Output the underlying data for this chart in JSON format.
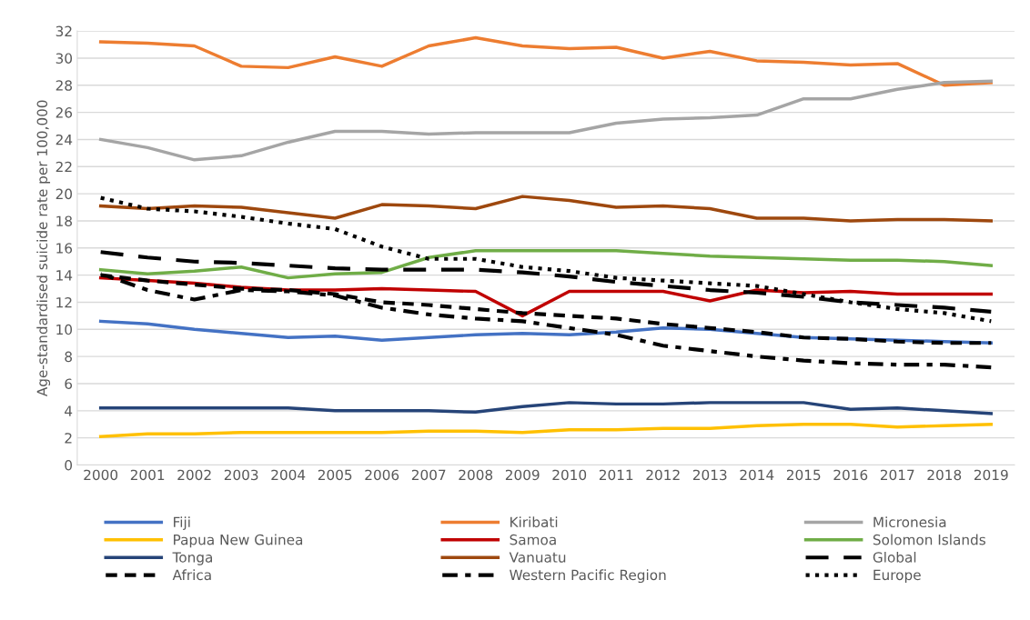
{
  "chart_data": {
    "type": "line",
    "ylabel": "Age-standardised suicide rate per 100,000",
    "categories": [
      "2000",
      "2001",
      "2002",
      "2003",
      "2004",
      "2005",
      "2006",
      "2007",
      "2008",
      "2009",
      "2010",
      "2011",
      "2012",
      "2013",
      "2014",
      "2015",
      "2016",
      "2017",
      "2018",
      "2019"
    ],
    "ylim": [
      0,
      32
    ],
    "yticks": [
      0,
      2,
      4,
      6,
      8,
      10,
      12,
      14,
      16,
      18,
      20,
      22,
      24,
      26,
      28,
      30,
      32
    ],
    "grid": "y",
    "legend": "bottom",
    "marker": "none",
    "series": [
      {
        "name": "Fiji",
        "color": "#4472c4",
        "line_style": "solid",
        "values": [
          10.6,
          10.4,
          10.0,
          9.7,
          9.4,
          9.5,
          9.2,
          9.4,
          9.6,
          9.7,
          9.6,
          9.8,
          10.1,
          10.0,
          9.7,
          9.4,
          9.3,
          9.2,
          9.1,
          9.0
        ]
      },
      {
        "name": "Kiribati",
        "color": "#ed7d31",
        "line_style": "solid",
        "values": [
          31.2,
          31.1,
          30.9,
          29.4,
          29.3,
          30.1,
          29.4,
          30.9,
          31.5,
          30.9,
          30.7,
          30.8,
          30.0,
          30.5,
          29.8,
          29.7,
          29.5,
          29.6,
          28.0,
          28.2
        ]
      },
      {
        "name": "Micronesia",
        "color": "#a5a5a5",
        "line_style": "solid",
        "values": [
          24.0,
          23.4,
          22.5,
          22.8,
          23.8,
          24.6,
          24.6,
          24.4,
          24.5,
          24.5,
          24.5,
          25.2,
          25.5,
          25.6,
          25.8,
          27.0,
          27.0,
          27.7,
          28.2,
          28.3
        ]
      },
      {
        "name": "Papua New Guinea",
        "color": "#ffc000",
        "line_style": "solid",
        "values": [
          2.1,
          2.3,
          2.3,
          2.4,
          2.4,
          2.4,
          2.4,
          2.5,
          2.5,
          2.4,
          2.6,
          2.6,
          2.7,
          2.7,
          2.9,
          3.0,
          3.0,
          2.8,
          2.9,
          3.0
        ]
      },
      {
        "name": "Samoa",
        "color": "#c00000",
        "line_style": "solid",
        "values": [
          13.8,
          13.6,
          13.4,
          13.1,
          12.9,
          12.9,
          13.0,
          12.9,
          12.8,
          11.0,
          12.8,
          12.8,
          12.8,
          12.1,
          12.9,
          12.7,
          12.8,
          12.6,
          12.6,
          12.6
        ]
      },
      {
        "name": "Solomon Islands",
        "color": "#70ad47",
        "line_style": "solid",
        "values": [
          14.4,
          14.1,
          14.3,
          14.6,
          13.8,
          14.1,
          14.2,
          15.3,
          15.8,
          15.8,
          15.8,
          15.8,
          15.6,
          15.4,
          15.3,
          15.2,
          15.1,
          15.1,
          15.0,
          14.7
        ]
      },
      {
        "name": "Tonga",
        "color": "#264478",
        "line_style": "solid",
        "values": [
          4.2,
          4.2,
          4.2,
          4.2,
          4.2,
          4.0,
          4.0,
          4.0,
          3.9,
          4.3,
          4.6,
          4.5,
          4.5,
          4.6,
          4.6,
          4.6,
          4.1,
          4.2,
          4.0,
          3.8
        ]
      },
      {
        "name": "Vanuatu",
        "color": "#9e480e",
        "line_style": "solid",
        "values": [
          19.1,
          18.9,
          19.1,
          19.0,
          18.6,
          18.2,
          19.2,
          19.1,
          18.9,
          19.8,
          19.5,
          19.0,
          19.1,
          18.9,
          18.2,
          18.2,
          18.0,
          18.1,
          18.1,
          18.0
        ]
      },
      {
        "name": "Global",
        "color": "#000000",
        "line_style": "longdash",
        "values": [
          15.7,
          15.3,
          15.0,
          14.9,
          14.7,
          14.5,
          14.4,
          14.4,
          14.4,
          14.2,
          13.9,
          13.5,
          13.2,
          12.9,
          12.7,
          12.4,
          12.0,
          11.8,
          11.6,
          11.3
        ]
      },
      {
        "name": "Africa",
        "color": "#000000",
        "line_style": "dashed",
        "values": [
          14.0,
          13.6,
          13.3,
          13.0,
          12.9,
          12.6,
          12.0,
          11.8,
          11.5,
          11.2,
          11.0,
          10.8,
          10.4,
          10.1,
          9.8,
          9.4,
          9.3,
          9.1,
          9.0,
          9.0
        ]
      },
      {
        "name": "Western Pacific Region",
        "color": "#000000",
        "line_style": "dashdot",
        "values": [
          14.1,
          12.9,
          12.2,
          12.9,
          12.8,
          12.5,
          11.6,
          11.1,
          10.8,
          10.6,
          10.1,
          9.6,
          8.8,
          8.4,
          8.0,
          7.7,
          7.5,
          7.4,
          7.4,
          7.2
        ]
      },
      {
        "name": "Europe",
        "color": "#000000",
        "line_style": "dotted",
        "values": [
          19.7,
          18.9,
          18.7,
          18.3,
          17.8,
          17.4,
          16.1,
          15.2,
          15.2,
          14.6,
          14.3,
          13.8,
          13.6,
          13.4,
          13.2,
          12.6,
          12.0,
          11.5,
          11.2,
          10.6
        ]
      }
    ]
  }
}
